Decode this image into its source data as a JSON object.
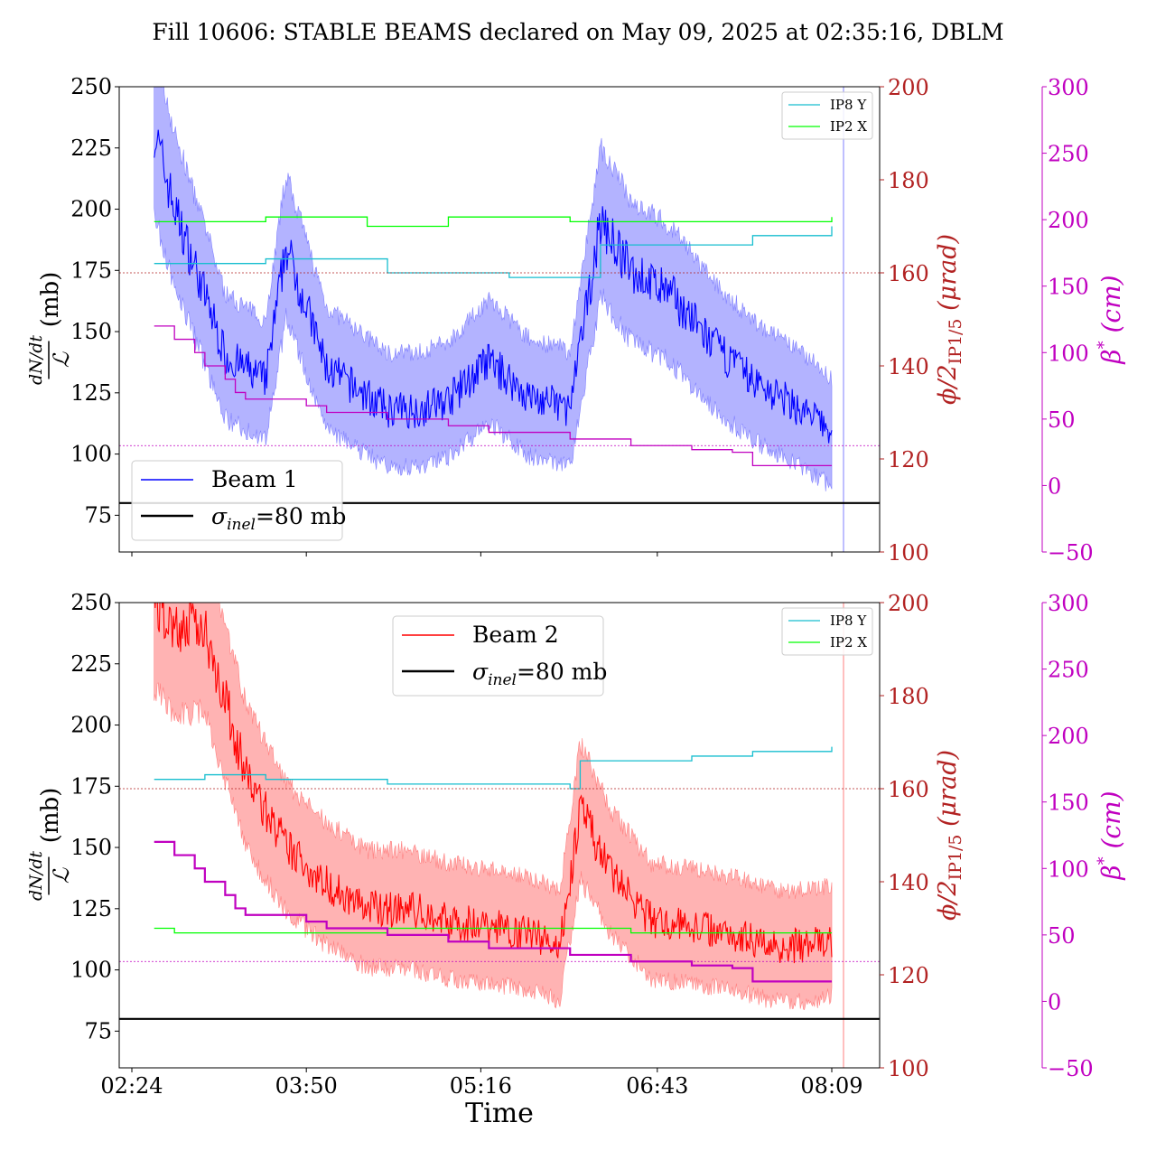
{
  "title": "Fill 10606: STABLE BEAMS declared on May 09, 2025 at 02:35:16, DBLM",
  "xlabel": "Time",
  "x_ticks": [
    "02:24",
    "03:50",
    "05:16",
    "06:43",
    "08:09"
  ],
  "colors": {
    "beam1": "#0000ff",
    "beam1_band": "#8080ff",
    "beam2": "#ff0000",
    "beam2_band": "#ff8080",
    "ip8y": "#17becf",
    "ip2x": "#00ff00",
    "angle_axis": "#b22222",
    "beta_axis": "#c000c0",
    "sigma": "#000000"
  },
  "chart_data": [
    {
      "type": "line",
      "panel": "top",
      "ylabel_num": "dN/dt",
      "ylabel_den": "ℒ",
      "ylabel_unit": "(mb)",
      "ylim": [
        60,
        250
      ],
      "yticks": [
        "75",
        "100",
        "125",
        "150",
        "175",
        "200",
        "225",
        "250"
      ],
      "y2label": "ϕ/2IP1/5 (μrad)",
      "y2label_main": "ϕ/2",
      "y2label_sub": "IP1/5",
      "y2label_unit": " (μrad)",
      "y2lim": [
        100,
        200
      ],
      "y2ticks": [
        "100",
        "120",
        "140",
        "160",
        "180",
        "200"
      ],
      "y3label": "β* (cm)",
      "y3label_main": "β",
      "y3label_sup": "*",
      "y3label_unit": " (cm)",
      "y3lim": [
        -50,
        300
      ],
      "y3ticks": [
        "−50",
        "0",
        "50",
        "100",
        "150",
        "200",
        "250",
        "300"
      ],
      "legend_main": {
        "beam": "Beam 1",
        "sigma_sym": "σ",
        "sigma_sub": "inel",
        "sigma_val": "=80 mb",
        "placement": "lower-left"
      },
      "legend_small": {
        "ip8": "IP8 Y",
        "ip2": "IP2 X",
        "placement": "upper-right"
      },
      "sigma_inel": 80,
      "reference_lines": {
        "angle": 160,
        "beta": 30
      },
      "series": [
        {
          "name": "Beam 1",
          "axis": "left",
          "x": [
            "02:35",
            "02:45",
            "03:00",
            "03:10",
            "03:30",
            "03:40",
            "04:00",
            "04:30",
            "04:45",
            "05:00",
            "05:20",
            "05:40",
            "05:55",
            "06:00",
            "06:15",
            "06:30",
            "06:50",
            "07:10",
            "07:30",
            "07:50",
            "08:05",
            "08:09"
          ],
          "values": [
            232,
            200,
            165,
            140,
            130,
            185,
            135,
            118,
            118,
            122,
            138,
            123,
            120,
            118,
            195,
            175,
            165,
            145,
            130,
            120,
            112,
            108
          ]
        },
        {
          "name": "IP8 Y",
          "axis": "right",
          "x": [
            "02:35",
            "03:00",
            "03:30",
            "04:00",
            "04:30",
            "05:00",
            "05:30",
            "06:00",
            "06:15",
            "06:30",
            "07:00",
            "07:30",
            "08:09"
          ],
          "values": [
            162,
            162,
            163,
            163,
            160,
            160,
            159,
            159,
            166,
            166,
            166,
            168,
            170
          ]
        },
        {
          "name": "IP2 X",
          "axis": "right",
          "x": [
            "02:35",
            "03:00",
            "03:30",
            "04:00",
            "04:20",
            "04:45",
            "05:00",
            "05:30",
            "06:00",
            "06:30",
            "07:00",
            "07:30",
            "08:09"
          ],
          "values": [
            171,
            171,
            172,
            172,
            170,
            170,
            172,
            172,
            171,
            171,
            171,
            171,
            172
          ]
        },
        {
          "name": "β*",
          "axis": "far-right",
          "x": [
            "02:35",
            "02:45",
            "02:55",
            "03:00",
            "03:10",
            "03:15",
            "03:20",
            "03:30",
            "03:50",
            "04:00",
            "04:30",
            "05:00",
            "05:20",
            "06:00",
            "06:30",
            "07:00",
            "07:20",
            "07:30",
            "08:09"
          ],
          "values": [
            120,
            110,
            100,
            90,
            80,
            70,
            65,
            65,
            60,
            55,
            50,
            45,
            40,
            35,
            30,
            27,
            25,
            15,
            15
          ]
        }
      ]
    },
    {
      "type": "line",
      "panel": "bottom",
      "ylabel_num": "dN/dt",
      "ylabel_den": "ℒ",
      "ylabel_unit": "(mb)",
      "ylim": [
        60,
        250
      ],
      "yticks": [
        "75",
        "100",
        "125",
        "150",
        "175",
        "200",
        "225",
        "250"
      ],
      "y2label": "ϕ/2IP1/5 (μrad)",
      "y2label_main": "ϕ/2",
      "y2label_sub": "IP1/5",
      "y2label_unit": " (μrad)",
      "y2lim": [
        100,
        200
      ],
      "y2ticks": [
        "100",
        "120",
        "140",
        "160",
        "180",
        "200"
      ],
      "y3label": "β* (cm)",
      "y3label_main": "β",
      "y3label_sup": "*",
      "y3label_unit": " (cm)",
      "y3lim": [
        -50,
        300
      ],
      "y3ticks": [
        "−50",
        "0",
        "50",
        "100",
        "150",
        "200",
        "250",
        "300"
      ],
      "legend_main": {
        "beam": "Beam 2",
        "sigma_sym": "σ",
        "sigma_sub": "inel",
        "sigma_val": "=80 mb",
        "placement": "upper-center"
      },
      "legend_small": {
        "ip8": "IP8 Y",
        "ip2": "IP2 X",
        "placement": "upper-right"
      },
      "sigma_inel": 80,
      "reference_lines": {
        "angle": 160,
        "beta": 30
      },
      "series": [
        {
          "name": "Beam 2",
          "axis": "left",
          "x": [
            "02:35",
            "02:45",
            "03:00",
            "03:10",
            "03:20",
            "03:40",
            "04:00",
            "04:20",
            "04:40",
            "05:00",
            "05:20",
            "05:40",
            "05:55",
            "06:05",
            "06:20",
            "06:40",
            "07:00",
            "07:20",
            "07:40",
            "08:00",
            "08:09"
          ],
          "values": [
            250,
            240,
            240,
            210,
            180,
            150,
            135,
            125,
            125,
            120,
            118,
            115,
            110,
            165,
            140,
            120,
            118,
            115,
            110,
            110,
            112
          ]
        },
        {
          "name": "IP8 Y",
          "axis": "right",
          "x": [
            "02:35",
            "03:00",
            "03:30",
            "04:00",
            "04:30",
            "05:00",
            "05:30",
            "06:00",
            "06:05",
            "06:30",
            "07:00",
            "07:30",
            "08:09"
          ],
          "values": [
            162,
            163,
            162,
            162,
            161,
            161,
            161,
            160,
            166,
            166,
            167,
            168,
            169
          ]
        },
        {
          "name": "IP2 X",
          "axis": "right",
          "x": [
            "02:35",
            "02:45",
            "03:00",
            "03:30",
            "04:00",
            "04:30",
            "05:00",
            "05:30",
            "06:00",
            "06:30",
            "07:00",
            "07:30",
            "08:09"
          ],
          "values": [
            130,
            129,
            129,
            129,
            129,
            130,
            130,
            130,
            130,
            129,
            129,
            129,
            129
          ]
        },
        {
          "name": "β*",
          "axis": "far-right",
          "x": [
            "02:35",
            "02:45",
            "02:55",
            "03:00",
            "03:10",
            "03:15",
            "03:20",
            "03:30",
            "03:50",
            "04:00",
            "04:30",
            "05:00",
            "05:20",
            "06:00",
            "06:30",
            "07:00",
            "07:20",
            "07:30",
            "08:09"
          ],
          "values": [
            120,
            110,
            100,
            90,
            80,
            70,
            65,
            65,
            60,
            55,
            50,
            45,
            40,
            35,
            30,
            27,
            25,
            15,
            15
          ]
        }
      ]
    }
  ]
}
